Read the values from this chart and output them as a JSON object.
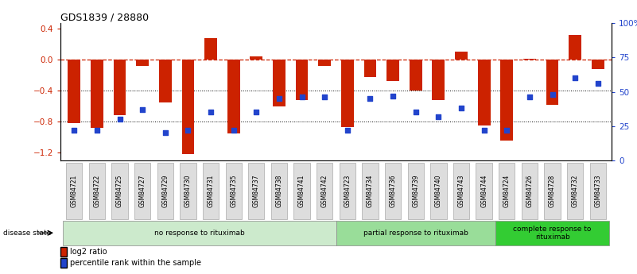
{
  "title": "GDS1839 / 28880",
  "samples": [
    "GSM84721",
    "GSM84722",
    "GSM84725",
    "GSM84727",
    "GSM84729",
    "GSM84730",
    "GSM84731",
    "GSM84735",
    "GSM84737",
    "GSM84738",
    "GSM84741",
    "GSM84742",
    "GSM84723",
    "GSM84734",
    "GSM84736",
    "GSM84739",
    "GSM84740",
    "GSM84743",
    "GSM84744",
    "GSM84724",
    "GSM84726",
    "GSM84728",
    "GSM84732",
    "GSM84733"
  ],
  "log2_ratio": [
    -0.82,
    -0.88,
    -0.72,
    -0.08,
    -0.55,
    -1.22,
    0.28,
    -0.95,
    0.04,
    -0.6,
    -0.52,
    -0.08,
    -0.87,
    -0.22,
    -0.28,
    -0.4,
    -0.52,
    0.1,
    -0.85,
    -1.05,
    0.01,
    -0.58,
    0.32,
    -0.12
  ],
  "percentile_rank": [
    22,
    22,
    30,
    37,
    20,
    22,
    35,
    22,
    35,
    45,
    46,
    46,
    22,
    45,
    47,
    35,
    32,
    38,
    22,
    22,
    46,
    48,
    60,
    56
  ],
  "groups": [
    {
      "label": "no response to rituximab",
      "start": 0,
      "end": 12,
      "color": "#cceacc"
    },
    {
      "label": "partial response to rituximab",
      "start": 12,
      "end": 19,
      "color": "#99dd99"
    },
    {
      "label": "complete response to\nrituximab",
      "start": 19,
      "end": 24,
      "color": "#33cc33"
    }
  ],
  "bar_color": "#cc2200",
  "dot_color": "#2244cc",
  "ylim_left": [
    -1.3,
    0.47
  ],
  "ylim_right": [
    0,
    100
  ],
  "yticks_left": [
    -1.2,
    -0.8,
    -0.4,
    0.0,
    0.4
  ],
  "yticks_right": [
    0,
    25,
    50,
    75,
    100
  ],
  "ytick_labels_right": [
    "0",
    "25",
    "50",
    "75",
    "100%"
  ],
  "hlines": [
    -0.8,
    -0.4
  ],
  "zero_line": 0.0,
  "bar_width": 0.55,
  "disease_state_label": "disease state",
  "legend_items": [
    {
      "label": "log2 ratio",
      "color": "#cc2200"
    },
    {
      "label": "percentile rank within the sample",
      "color": "#2244cc"
    }
  ]
}
